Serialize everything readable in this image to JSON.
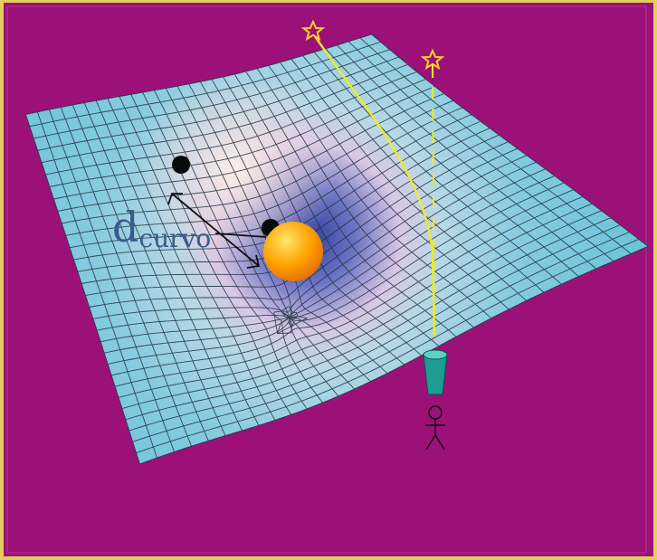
{
  "labels": {
    "distance_letter": "d",
    "distance_subscript": "curvo"
  },
  "colors": {
    "background": "#9c1178",
    "frame": "#e2cf5a",
    "sheet_edge": "#5fc0d6",
    "well_center": "#2f3f9a",
    "well_glow": "#f4dbe0",
    "light_ray": "#ecec2a",
    "star_outline": "#f2d22a",
    "sun": "#ffa200",
    "telescope": "#1d9c94"
  },
  "icons": [
    "star-icon",
    "stick-figure-icon",
    "telescope-icon"
  ]
}
